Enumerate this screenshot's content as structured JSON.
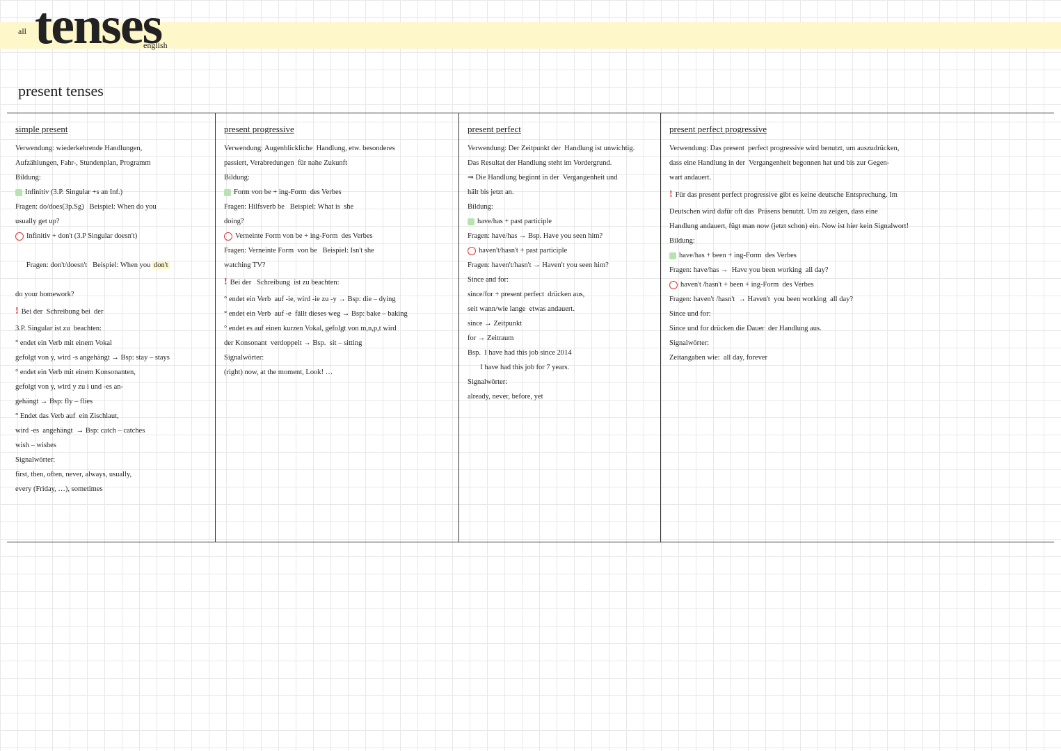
{
  "colors": {
    "highlight": "#fdf7ca",
    "grid": "#e8e8e8",
    "text": "#222222",
    "red": "#d33333",
    "green": "#b7e3b0",
    "border": "#333333"
  },
  "header": {
    "all": "all",
    "title": "tenses",
    "english": "english"
  },
  "section_title": "present tenses",
  "col1": {
    "title": "simple present",
    "l1": "Verwendung: wiederkehrende Handlungen,",
    "l2": "Aufzählungen, Fahr-, Stundenplan, Programm",
    "l3": "Bildung:",
    "l4": "Infinitiv (3.P. Singular +s an Inf.)",
    "l5": "Fragen: do/does(3p.Sg)   Beispiel: When do you",
    "l6": "usually get up?",
    "l7": "Infinitiv + don't (3.P Singular doesn't)",
    "l8_a": "Fragen: don't/doesn't   Beispiel: When you ",
    "l8_b": "don't",
    "l9": "do your homework?",
    "l10": "Bei der  Schreibung bei  der",
    "l11": "3.P. Singular ist zu  beachten:",
    "l12": "endet ein Verb mit einem Vokal",
    "l13": "gefolgt von y, wird -s angehängt → Bsp: stay – stays",
    "l14": "endet ein Verb mit einem Konsonanten,",
    "l15": "gefolgt von y, wird y zu i und -es an-",
    "l16": "gehängt → Bsp: fly – flies",
    "l17": "Endet das Verb auf  ein Zischlaut,",
    "l18": "wird -es  angehängt  → Bsp: catch – catches",
    "l19": "wish – wishes",
    "l20": "Signalwörter:",
    "l21": "first, then, often, never, always, usually,",
    "l22": "every (Friday, …), sometimes"
  },
  "col2": {
    "title": "present progressive",
    "l1": "Verwendung: Augenblickliche  Handlung, etw. besonderes",
    "l2": "passiert, Verabredungen  für nahe Zukunft",
    "l3": "Bildung:",
    "l4": "Form von be + ing-Form  des Verbes",
    "l5": "Fragen: Hilfsverb be   Beispiel: What is  she",
    "l6": "doing?",
    "l7": "Verneinte Form von be + ing-Form  des Verbes",
    "l8": "Fragen: Verneinte Form  von be   Beispiel: Isn't she",
    "l9": "watching TV?",
    "l10": "Bei der   Schreibung  ist zu beachten:",
    "l11": "endet ein Verb  auf -ie, wird -ie zu -y → Bsp: die – dying",
    "l12": "endet ein Verb  auf -e  fällt dieses weg → Bsp: bake – baking",
    "l13": "endet es auf einen kurzen Vokal, gefolgt von m,n,p,t wird",
    "l14": "der Konsonant  verdoppelt → Bsp.  sit – sitting",
    "l15": "Signalwörter:",
    "l16": "(right) now, at the moment, Look! …"
  },
  "col3": {
    "title": "present perfect",
    "l1": "Verwendung: Der Zeitpunkt der  Handlung ist unwichtig.",
    "l2": "Das Resultat der Handlung steht im Vordergrund.",
    "l3": "⇒ Die Handlung beginnt in der  Vergangenheit und",
    "l4": "hält bis jetzt an.",
    "l5": "Bildung:",
    "l6": "have/has + past participle",
    "l7": "Fragen: have/has → Bsp. Have you seen him?",
    "l8": "haven't/hasn't + past participle",
    "l9": "Fragen: haven't/hasn't → Haven't you seen him?",
    "l10": "Since and for:",
    "l11": "since/for + present perfect  drücken aus,",
    "l12": "seit wann/wie lange  etwas andauert.",
    "l13": "since → Zeitpunkt",
    "l14": "for → Zeitraum",
    "l15": "Bsp.  I have had this job since 2014",
    "l16": "       I have had this job for 7 years.",
    "l17": "Signalwörter:",
    "l18": "already, never, before, yet"
  },
  "col4": {
    "title": "present perfect  progressive",
    "l1": "Verwendung: Das present  perfect progressive wird benutzt, um auszudrücken,",
    "l2": "dass eine Handlung in der  Vergangenheit begonnen hat und bis zur Gegen-",
    "l3": "wart andauert.",
    "l4": "Für das present perfect progressive gibt es keine deutsche Entsprechung. Im",
    "l5": "Deutschen wird dafür oft das  Präsens benutzt. Um zu zeigen, dass eine",
    "l6": "Handlung andauert, fügt man now (jetzt schon) ein. Now ist hier kein Signalwort!",
    "l7": "Bildung:",
    "l8": "have/has + been + ing-Form  des Verbes",
    "l9": "Fragen: have/has →  Have you been working  all day?",
    "l10": "haven't /hasn't + been + ing-Form  des Verbes",
    "l11": "Fragen: haven't /hasn't  → Haven't  you been working  all day?",
    "l12": "Since und for:",
    "l13": "Since und for drücken die Dauer  der Handlung aus.",
    "l14": "Signalwörter:",
    "l15": "Zeitangaben wie:  all day, forever"
  }
}
